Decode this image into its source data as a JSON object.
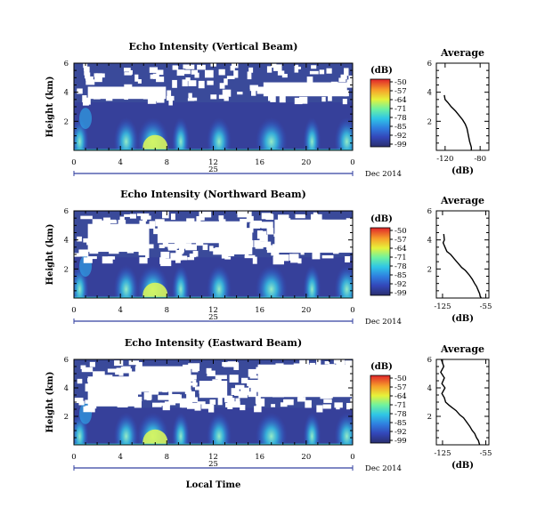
{
  "figure": {
    "xlabel": "Local Time",
    "date_label": "Dec 2014",
    "day_label": "25"
  },
  "chart_data": [
    {
      "type": "heatmap",
      "title": "Echo Intensity (Vertical Beam)",
      "xlabel": "",
      "ylabel": "Height (km)",
      "x_ticks": [
        "0",
        "4",
        "8",
        "12",
        "16",
        "20",
        "0"
      ],
      "xlim": [
        0,
        24
      ],
      "y_ticks": [
        "6",
        "4",
        "2"
      ],
      "ylim": [
        0,
        6
      ],
      "colorbar": {
        "unit": "(dB)",
        "ticks": [
          "-50",
          "-57",
          "-64",
          "-71",
          "-78",
          "-85",
          "-92",
          "-99"
        ],
        "range": [
          -99,
          -50
        ]
      },
      "clutter_top_km": 3.3,
      "echo_peak_hours": [
        0.5,
        4.5,
        6.8,
        9.2,
        12.5,
        17,
        20.5,
        23.5
      ]
    },
    {
      "type": "heatmap",
      "title": "Echo Intensity (Northward Beam)",
      "xlabel": "",
      "ylabel": "Height (km)",
      "x_ticks": [
        "0",
        "4",
        "8",
        "12",
        "16",
        "20",
        "0"
      ],
      "xlim": [
        0,
        24
      ],
      "y_ticks": [
        "6",
        "4",
        "2"
      ],
      "ylim": [
        0,
        6
      ],
      "colorbar": {
        "unit": "(dB)",
        "ticks": [
          "-50",
          "-57",
          "-64",
          "-71",
          "-78",
          "-85",
          "-92",
          "-99"
        ],
        "range": [
          -99,
          -50
        ]
      },
      "clutter_top_km": 2.8,
      "echo_peak_hours": [
        0.5,
        4.5,
        6.8,
        9.2,
        12.5,
        17,
        20.5,
        23.5
      ]
    },
    {
      "type": "heatmap",
      "title": "Echo Intensity (Eastward Beam)",
      "xlabel": "",
      "ylabel": "Height (km)",
      "x_ticks": [
        "0",
        "4",
        "8",
        "12",
        "16",
        "20",
        "0"
      ],
      "xlim": [
        0,
        24
      ],
      "y_ticks": [
        "6",
        "4",
        "2"
      ],
      "ylim": [
        0,
        6
      ],
      "colorbar": {
        "unit": "(dB)",
        "ticks": [
          "-50",
          "-57",
          "-64",
          "-71",
          "-78",
          "-85",
          "-92",
          "-99"
        ],
        "range": [
          -99,
          -50
        ]
      },
      "clutter_top_km": 2.6,
      "echo_peak_hours": [
        0.5,
        4.5,
        6.8,
        9.2,
        12.5,
        17,
        20.5,
        23.5
      ]
    },
    {
      "type": "line",
      "title": "Average",
      "xlabel": "(dB)",
      "x_ticks": [
        "-120",
        "-80"
      ],
      "xlim": [
        -130,
        -70
      ],
      "y_ticks": [
        "6",
        "4",
        "2"
      ],
      "ylim": [
        0,
        6
      ],
      "x": [
        -121,
        -120,
        -117,
        -113,
        -108,
        -104,
        -100,
        -97,
        -95,
        -94,
        -93,
        -92,
        -91,
        -90,
        -90
      ],
      "y": [
        3.8,
        3.5,
        3.3,
        3.0,
        2.7,
        2.4,
        2.1,
        1.8,
        1.5,
        1.2,
        0.9,
        0.6,
        0.4,
        0.2,
        0.0
      ]
    },
    {
      "type": "line",
      "title": "Average",
      "xlabel": "(dB)",
      "x_ticks": [
        "-125",
        "-55"
      ],
      "xlim": [
        -135,
        -50
      ],
      "y_ticks": [
        "6",
        "4",
        "2"
      ],
      "ylim": [
        0,
        6
      ],
      "x": [
        -123,
        -122,
        -124,
        -121,
        -118,
        -112,
        -106,
        -100,
        -94,
        -88,
        -82,
        -77,
        -73,
        -70,
        -67,
        -65,
        -64,
        -63,
        -63
      ],
      "y": [
        4.4,
        4.0,
        3.8,
        3.5,
        3.2,
        3.0,
        2.7,
        2.4,
        2.1,
        1.9,
        1.6,
        1.3,
        1.0,
        0.8,
        0.5,
        0.3,
        0.1,
        0.05,
        0.0
      ]
    },
    {
      "type": "line",
      "title": "Average",
      "xlabel": "(dB)",
      "x_ticks": [
        "-125",
        "-55"
      ],
      "xlim": [
        -135,
        -50
      ],
      "y_ticks": [
        "6",
        "4",
        "2"
      ],
      "ylim": [
        0,
        6
      ],
      "x": [
        -127,
        -123,
        -128,
        -122,
        -126,
        -121,
        -126,
        -122,
        -120,
        -115,
        -109,
        -103,
        -97,
        -91,
        -86,
        -81,
        -77,
        -73,
        -70,
        -67,
        -65
      ],
      "y": [
        6.0,
        5.5,
        5.1,
        4.7,
        4.3,
        4.0,
        3.6,
        3.3,
        3.0,
        2.8,
        2.6,
        2.4,
        2.1,
        1.9,
        1.6,
        1.3,
        1.0,
        0.8,
        0.5,
        0.3,
        0.0
      ]
    }
  ]
}
